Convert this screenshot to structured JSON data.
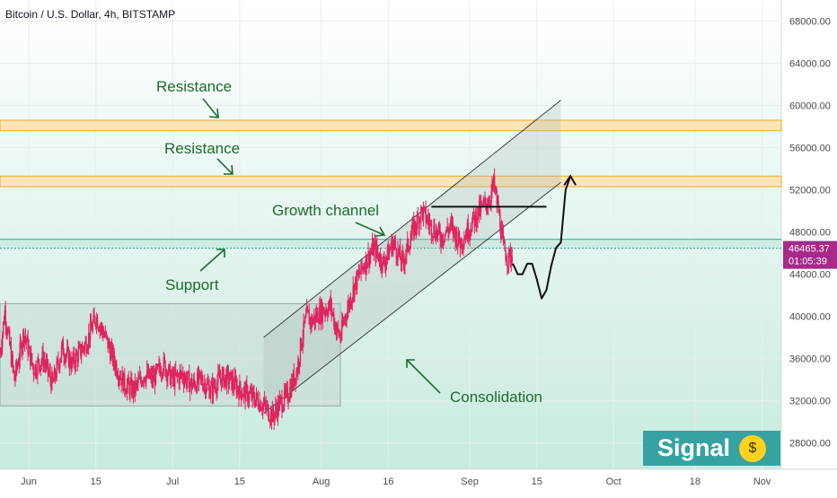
{
  "header": {
    "title": "Bitcoin / U.S. Dollar, 4h, BITSTAMP"
  },
  "colors": {
    "bg_top": "#ffffff",
    "bg_bottom": "#c8ebdf",
    "candles": "#e0245e",
    "zone_fill": "#fbe6b8",
    "zone_border": "#f0a526",
    "support_line": "#2aa39a",
    "annotation_text": "#1f6b2e",
    "price_label_bg": "#a52a8a",
    "badge_bg": "#36a2a2"
  },
  "annotations": {
    "resistance_upper": "Resistance",
    "resistance_lower": "Resistance",
    "growth_channel": "Growth channel",
    "support": "Support",
    "consolidation": "Consolidation"
  },
  "price_label": {
    "price": "46465.37",
    "countdown": "01:05:39"
  },
  "badge": {
    "label": "Signal",
    "emoji": "money-mouth-face-icon"
  },
  "chart_data": {
    "type": "candlestick",
    "title": "Bitcoin / U.S. Dollar, 4h, BITSTAMP",
    "y_ticks": [
      28000,
      32000,
      36000,
      40000,
      44000,
      48000,
      52000,
      56000,
      60000,
      64000,
      68000
    ],
    "y_tick_labels": [
      "28000.00",
      "32000.00",
      "36000.00",
      "40000.00",
      "44000.00",
      "48000.00",
      "52000.00",
      "56000.00",
      "60000.00",
      "64000.00",
      "68000.00"
    ],
    "ylim": [
      25500,
      70000
    ],
    "x_ticks": [
      {
        "day": 6,
        "label": "Jun"
      },
      {
        "day": 20,
        "label": "15"
      },
      {
        "day": 36,
        "label": "Jul"
      },
      {
        "day": 50,
        "label": "15"
      },
      {
        "day": 67,
        "label": "Aug"
      },
      {
        "day": 81,
        "label": "16"
      },
      {
        "day": 98,
        "label": "Sep"
      },
      {
        "day": 112,
        "label": "15"
      },
      {
        "day": 128,
        "label": "Oct"
      },
      {
        "day": 145,
        "label": "18"
      },
      {
        "day": 159,
        "label": "Nov"
      }
    ],
    "xlim": [
      0,
      163
    ],
    "price_path": [
      [
        0,
        36500
      ],
      [
        1,
        40500
      ],
      [
        3,
        34000
      ],
      [
        5,
        38500
      ],
      [
        7,
        35000
      ],
      [
        9,
        36000
      ],
      [
        11,
        33500
      ],
      [
        13,
        37000
      ],
      [
        15,
        35500
      ],
      [
        18,
        37500
      ],
      [
        20,
        40000
      ],
      [
        22,
        38000
      ],
      [
        24,
        35500
      ],
      [
        26,
        33500
      ],
      [
        28,
        33000
      ],
      [
        30,
        34500
      ],
      [
        32,
        34000
      ],
      [
        34,
        35500
      ],
      [
        36,
        34000
      ],
      [
        38,
        34500
      ],
      [
        40,
        33500
      ],
      [
        42,
        34000
      ],
      [
        44,
        33000
      ],
      [
        46,
        34200
      ],
      [
        48,
        34000
      ],
      [
        50,
        33000
      ],
      [
        52,
        32500
      ],
      [
        54,
        32000
      ],
      [
        56,
        31000
      ],
      [
        57,
        30500
      ],
      [
        58,
        31500
      ],
      [
        60,
        32500
      ],
      [
        62,
        35000
      ],
      [
        63,
        38000
      ],
      [
        64,
        40000
      ],
      [
        65,
        39500
      ],
      [
        67,
        40500
      ],
      [
        69,
        41000
      ],
      [
        70,
        39000
      ],
      [
        71,
        38000
      ],
      [
        72,
        40000
      ],
      [
        74,
        43000
      ],
      [
        76,
        45000
      ],
      [
        78,
        46500
      ],
      [
        80,
        45000
      ],
      [
        82,
        47000
      ],
      [
        84,
        45000
      ],
      [
        86,
        48000
      ],
      [
        88,
        50000
      ],
      [
        90,
        48500
      ],
      [
        92,
        47500
      ],
      [
        94,
        48500
      ],
      [
        96,
        47000
      ],
      [
        98,
        48500
      ],
      [
        100,
        50000
      ],
      [
        102,
        51000
      ],
      [
        103,
        52500
      ],
      [
        104,
        50000
      ],
      [
        105,
        46500
      ],
      [
        106,
        45500
      ],
      [
        107,
        46000
      ]
    ],
    "zones": [
      {
        "name": "Resistance",
        "from": 57600,
        "to": 58600
      },
      {
        "name": "Resistance",
        "from": 52300,
        "to": 53300
      }
    ],
    "support_level": 46465.37,
    "support_band": [
      46465.37,
      47300
    ],
    "current_price": 46465.37,
    "consolidation_box": {
      "x": [
        0,
        71
      ],
      "y": [
        31500,
        41200
      ]
    },
    "channel": {
      "lower": [
        [
          55,
          30800
        ],
        [
          117,
          52700
        ]
      ],
      "upper": [
        [
          55,
          38000
        ],
        [
          117,
          60500
        ]
      ],
      "top_price": 60200
    },
    "horizontal_line": {
      "price": 50400,
      "x": [
        90,
        114
      ]
    },
    "projection_path": [
      [
        107,
        45000
      ],
      [
        108,
        44000
      ],
      [
        109,
        44000
      ],
      [
        110,
        45000
      ],
      [
        111,
        45000
      ],
      [
        112,
        43500
      ],
      [
        113,
        41700
      ],
      [
        114,
        42500
      ],
      [
        115,
        44800
      ],
      [
        116,
        46500
      ],
      [
        117,
        47000
      ],
      [
        118,
        52000
      ],
      [
        119,
        53300
      ]
    ]
  }
}
